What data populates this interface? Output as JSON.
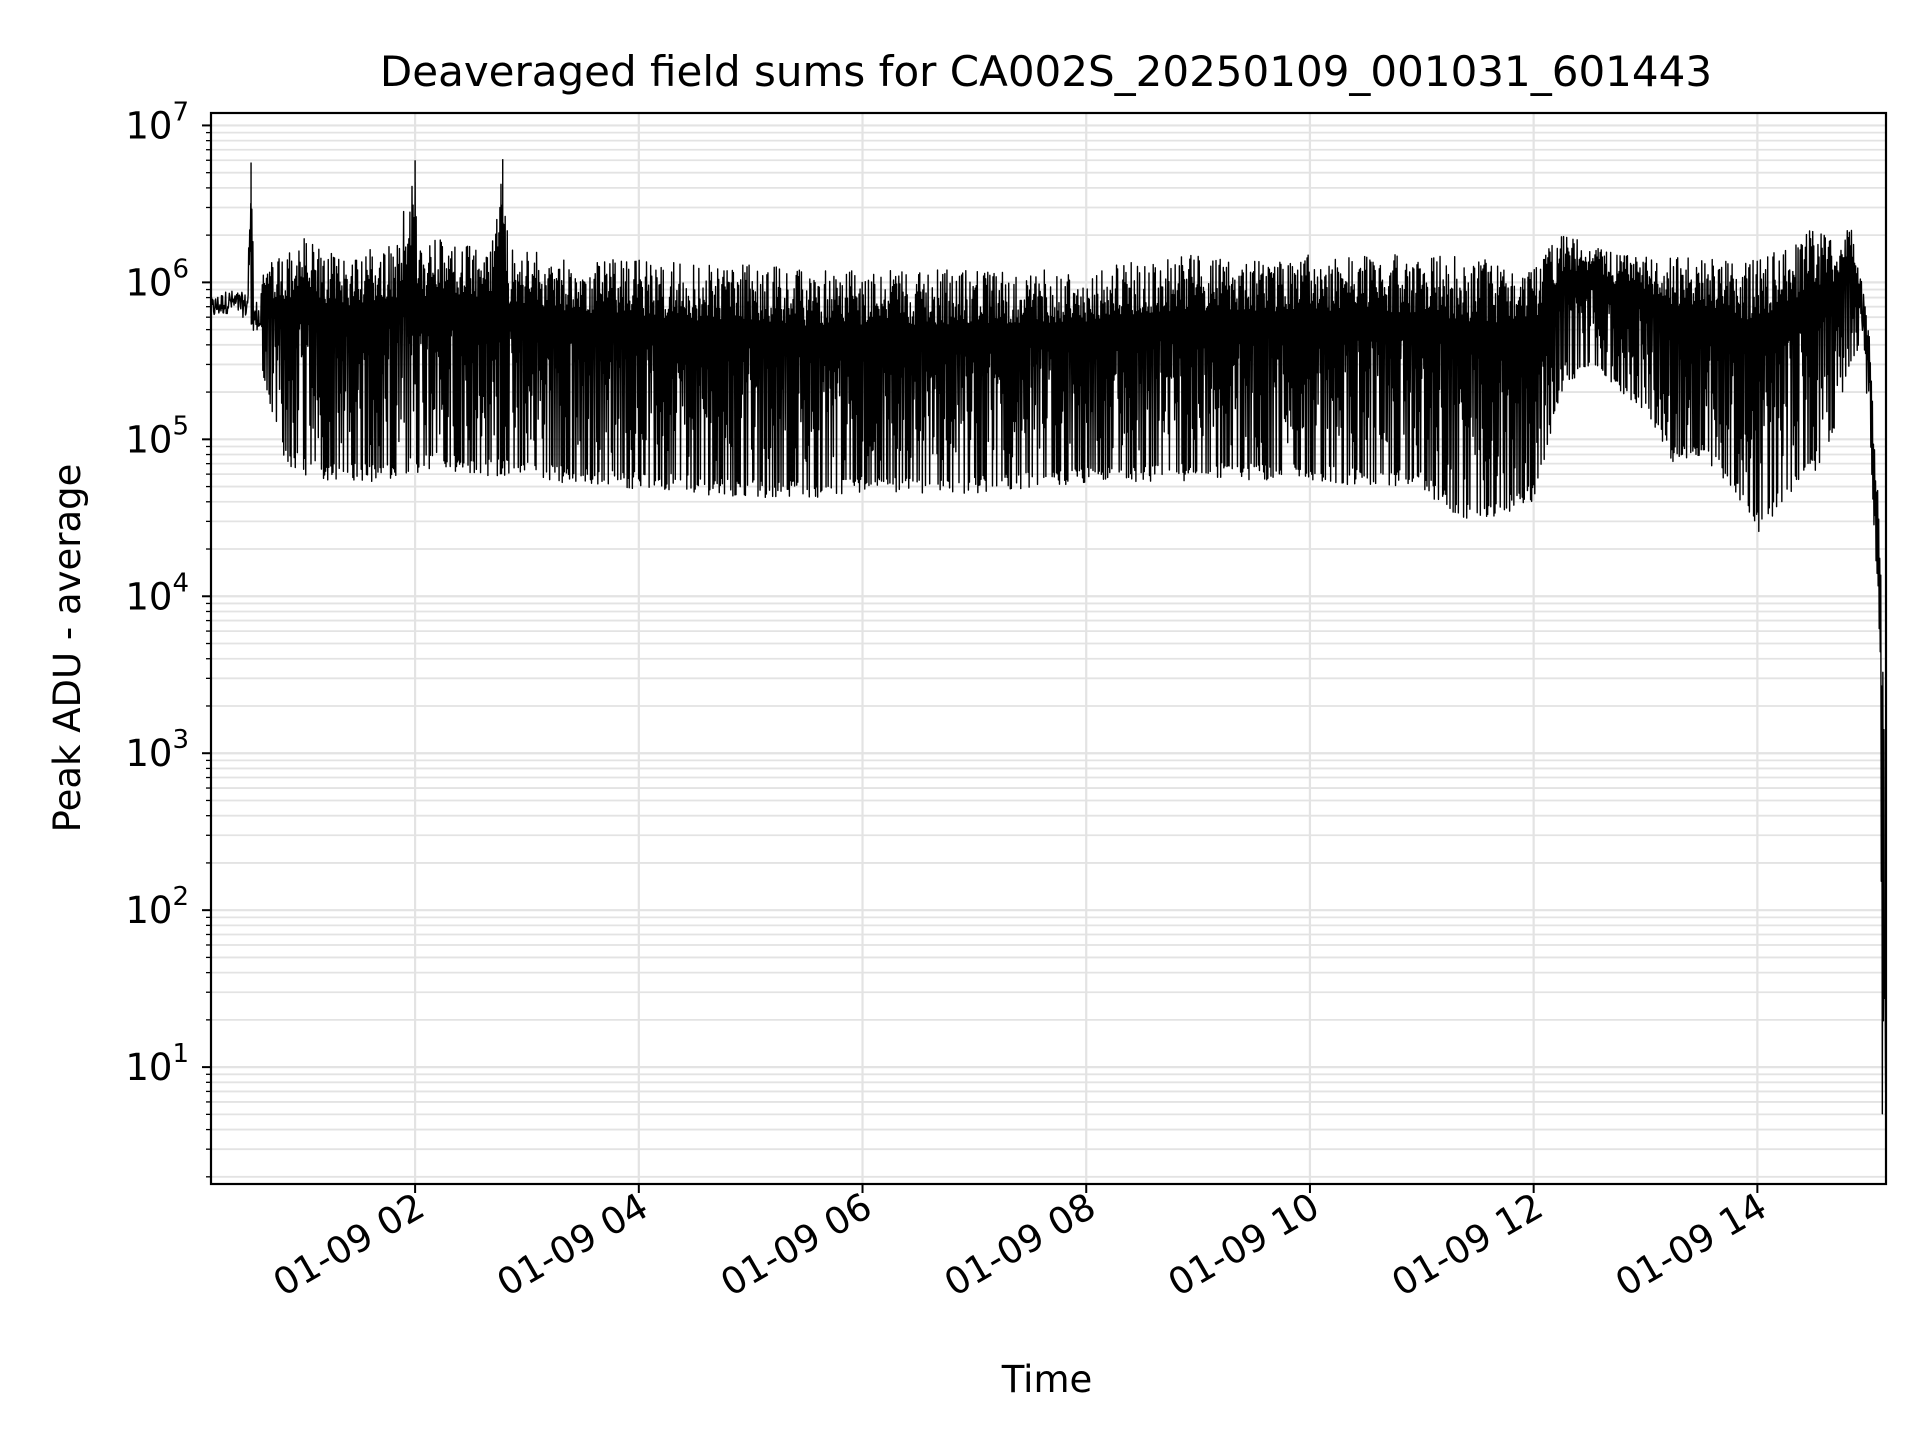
{
  "chart_data": {
    "type": "line",
    "title": "Deaveraged field sums for CA002S_20250109_001031_601443",
    "xlabel": "Time",
    "ylabel": "Peak ADU - average",
    "y_scale": "log",
    "grid": true,
    "legend": "none",
    "line_color": "#000000",
    "grid_color": "#e3e3e3",
    "xlim": [
      "2025-01-09 00:10:31",
      "2025-01-09 15:09:00"
    ],
    "ylim": [
      1.8,
      12000000
    ],
    "x_ticks": [
      "2025-01-09 02:00",
      "2025-01-09 04:00",
      "2025-01-09 06:00",
      "2025-01-09 08:00",
      "2025-01-09 10:00",
      "2025-01-09 12:00",
      "2025-01-09 14:00"
    ],
    "x_tick_labels": [
      "01-09 02",
      "01-09 04",
      "01-09 06",
      "01-09 08",
      "01-09 10",
      "01-09 12",
      "01-09 14"
    ],
    "y_ticks": [
      10,
      100,
      1000,
      10000,
      100000,
      1000000,
      10000000
    ],
    "y_tick_labels": [
      {
        "base": "10",
        "exp": "1"
      },
      {
        "base": "10",
        "exp": "2"
      },
      {
        "base": "10",
        "exp": "3"
      },
      {
        "base": "10",
        "exp": "4"
      },
      {
        "base": "10",
        "exp": "5"
      },
      {
        "base": "10",
        "exp": "6"
      },
      {
        "base": "10",
        "exp": "7"
      }
    ],
    "series": [
      {
        "x": [
          "2025-01-09 00:10:31",
          "2025-01-09 00:20",
          "2025-01-09 00:30",
          "2025-01-09 00:32",
          "2025-01-09 00:34",
          "2025-01-09 00:40",
          "2025-01-09 00:50",
          "2025-01-09 01:00",
          "2025-01-09 01:10",
          "2025-01-09 01:20",
          "2025-01-09 01:30",
          "2025-01-09 01:40",
          "2025-01-09 01:50",
          "2025-01-09 02:00",
          "2025-01-09 02:01",
          "2025-01-09 02:10",
          "2025-01-09 02:20",
          "2025-01-09 02:30",
          "2025-01-09 02:40",
          "2025-01-09 02:47",
          "2025-01-09 02:50",
          "2025-01-09 03:00",
          "2025-01-09 03:30",
          "2025-01-09 04:00",
          "2025-01-09 04:30",
          "2025-01-09 05:00",
          "2025-01-09 05:30",
          "2025-01-09 06:00",
          "2025-01-09 06:30",
          "2025-01-09 07:00",
          "2025-01-09 07:30",
          "2025-01-09 08:00",
          "2025-01-09 08:30",
          "2025-01-09 09:00",
          "2025-01-09 09:30",
          "2025-01-09 10:00",
          "2025-01-09 10:30",
          "2025-01-09 11:00",
          "2025-01-09 11:20",
          "2025-01-09 11:35",
          "2025-01-09 11:50",
          "2025-01-09 12:00",
          "2025-01-09 12:15",
          "2025-01-09 12:30",
          "2025-01-09 12:45",
          "2025-01-09 13:00",
          "2025-01-09 13:15",
          "2025-01-09 13:30",
          "2025-01-09 13:45",
          "2025-01-09 14:00",
          "2025-01-09 14:15",
          "2025-01-09 14:30",
          "2025-01-09 14:40",
          "2025-01-09 14:50",
          "2025-01-09 14:55",
          "2025-01-09 15:00",
          "2025-01-09 15:03",
          "2025-01-09 15:05",
          "2025-01-09 15:06",
          "2025-01-09 15:07",
          "2025-01-09 15:08",
          "2025-01-09 15:09"
        ],
        "high": [
          800000,
          900000,
          850000,
          5800000,
          700000,
          1300000,
          1500000,
          2000000,
          1600000,
          1500000,
          1700000,
          1600000,
          1800000,
          6000000,
          1600000,
          1900000,
          1800000,
          1700000,
          1700000,
          6100000,
          1700000,
          1600000,
          1400000,
          1400000,
          1300000,
          1300000,
          1200000,
          1200000,
          1200000,
          1200000,
          1200000,
          1200000,
          1400000,
          1500000,
          1400000,
          1500000,
          1500000,
          1500000,
          1500000,
          1400000,
          1300000,
          1300000,
          2000000,
          1800000,
          1500000,
          1500000,
          1500000,
          1400000,
          1400000,
          1500000,
          1600000,
          2300000,
          1900000,
          2400000,
          1200000,
          500000,
          80000,
          40000,
          20000,
          8000,
          1500,
          4
        ],
        "low": [
          500000,
          550000,
          500000,
          500000,
          450000,
          200000,
          70000,
          60000,
          55000,
          55000,
          55000,
          52000,
          55000,
          56000,
          60000,
          65000,
          62000,
          60000,
          58000,
          58000,
          57000,
          55000,
          52000,
          48000,
          45000,
          42000,
          42000,
          45000,
          45000,
          45000,
          48000,
          52000,
          52000,
          55000,
          55000,
          55000,
          50000,
          48000,
          30000,
          28000,
          35000,
          40000,
          200000,
          300000,
          200000,
          150000,
          70000,
          80000,
          50000,
          25000,
          40000,
          60000,
          100000,
          300000,
          400000,
          150000,
          20000,
          10000,
          2000,
          4,
          4,
          3.7
        ]
      }
    ]
  }
}
